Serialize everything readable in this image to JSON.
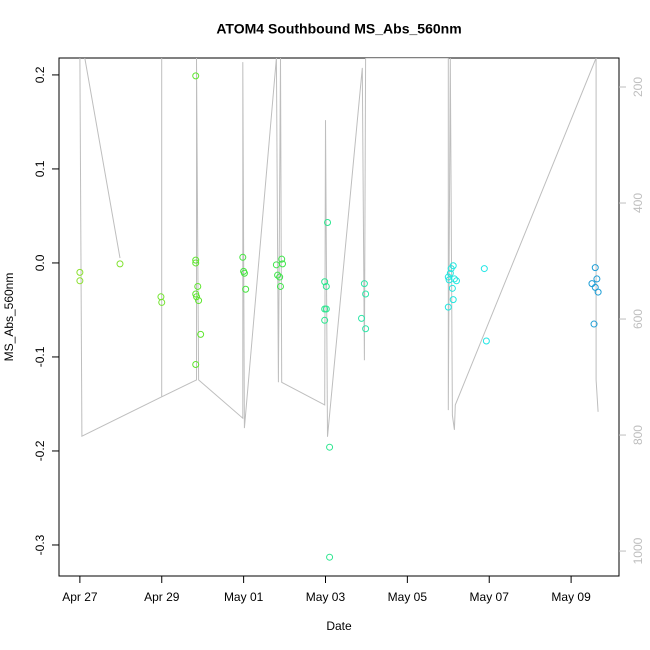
{
  "chart_data": {
    "type": "scatter",
    "title": "ATOM4 Southbound MS_Abs_560nm",
    "xlabel": "Date",
    "ylabel": "MS_Abs_560nm",
    "xlim": [
      -0.51,
      13.17
    ],
    "xticks": [
      {
        "value": 0,
        "label": "Apr 27"
      },
      {
        "value": 2,
        "label": "Apr 29"
      },
      {
        "value": 4,
        "label": "May 01"
      },
      {
        "value": 6,
        "label": "May 03"
      },
      {
        "value": 8,
        "label": "May 05"
      },
      {
        "value": 10,
        "label": "May 07"
      },
      {
        "value": 12,
        "label": "May 09"
      }
    ],
    "ylim": [
      -0.333,
      0.218
    ],
    "yticks": [
      {
        "value": -0.3,
        "label": "-0.3"
      },
      {
        "value": -0.2,
        "label": "-0.2"
      },
      {
        "value": -0.1,
        "label": "-0.1"
      },
      {
        "value": 0,
        "label": "0.0"
      },
      {
        "value": 0.1,
        "label": "0.1"
      },
      {
        "value": 0.2,
        "label": "0.2"
      }
    ],
    "y2lim": [
      1043,
      150
    ],
    "y2ticks": [
      200,
      400,
      600,
      800,
      1000
    ],
    "y2color": "#bebebe",
    "series": [
      {
        "type": "line",
        "axis": "y2",
        "color": "#bebebe",
        "x": [
          0.12,
          0.98,
          null,
          0,
          0.05,
          2.0,
          2.0,
          2.0,
          2.85,
          2.85,
          2.9,
          3.98,
          3.98,
          4.02,
          4.8,
          4.85,
          4.9,
          4.93,
          5.98,
          6.0,
          6.05,
          6.9,
          6.95,
          6.98,
          9.0,
          9.0,
          9.05,
          9.1,
          9.15,
          9.17,
          12.61,
          12.61,
          12.66
        ],
        "values": [
          150,
          495,
          null,
          150,
          802,
          734,
          150,
          734,
          705,
          150,
          705,
          771,
          157,
          788,
          150,
          709,
          150,
          709,
          748,
          257,
          803,
          167,
          671,
          150,
          150,
          757,
          150,
          766,
          791,
          748,
          150,
          705,
          760
        ]
      },
      {
        "type": "scatter",
        "x": [
          0,
          0,
          0.98,
          1.98,
          2.0,
          2.83,
          2.83,
          2.83,
          2.88,
          2.83,
          2.85,
          2.9,
          2.95,
          2.83,
          3.98,
          4.0,
          4.02,
          4.05,
          4.8,
          4.83,
          4.88,
          4.9,
          4.93,
          4.95,
          5.98,
          6.02,
          5.98,
          6.02,
          5.98,
          6.05,
          6.1,
          6.1,
          6.88,
          6.95,
          6.98,
          6.98,
          9.0,
          9.02,
          9.05,
          9.07,
          9.12,
          9.15,
          9.1,
          9.2,
          9.12,
          9.0,
          9.88,
          9.93,
          12.59,
          12.63,
          12.51,
          12.59,
          12.66,
          12.56
        ],
        "values": [
          -0.01,
          -0.019,
          -0.001,
          -0.036,
          -0.042,
          0.199,
          0.003,
          0.0,
          -0.025,
          -0.033,
          -0.036,
          -0.04,
          -0.076,
          -0.108,
          0.006,
          -0.009,
          -0.011,
          -0.028,
          -0.002,
          -0.013,
          -0.015,
          -0.025,
          0.004,
          -0.001,
          -0.02,
          -0.025,
          -0.049,
          -0.049,
          -0.061,
          0.043,
          -0.196,
          -0.313,
          -0.059,
          -0.022,
          -0.033,
          -0.07,
          -0.015,
          -0.018,
          -0.011,
          -0.006,
          -0.003,
          -0.017,
          -0.027,
          -0.019,
          -0.039,
          -0.047,
          -0.006,
          -0.083,
          -0.005,
          -0.017,
          -0.022,
          -0.026,
          -0.031,
          -0.065
        ],
        "colors": [
          "#8be02e",
          "#8be02e",
          "#80e22e",
          "#72e42e",
          "#72e42e",
          "#5ee62e",
          "#5ee62e",
          "#5ee62e",
          "#5ee62e",
          "#5ee62e",
          "#5ee62e",
          "#5ee62e",
          "#5ee62e",
          "#5ee62e",
          "#46e640",
          "#46e640",
          "#46e640",
          "#46e640",
          "#3ee64a",
          "#3ee64a",
          "#3ee64a",
          "#3ee64a",
          "#3ee64a",
          "#3ee64a",
          "#2ee690",
          "#2ee690",
          "#2ee690",
          "#2ee690",
          "#2ee690",
          "#2ee690",
          "#2ee690",
          "#2ee690",
          "#2ee6a8",
          "#2ee6a8",
          "#2ee6a8",
          "#2ee6a8",
          "#22e6e0",
          "#22e6e0",
          "#22e6e0",
          "#22e6e0",
          "#22e6e0",
          "#22e6e0",
          "#22e6e0",
          "#22e6e0",
          "#22e6e0",
          "#22e6e0",
          "#22e6e6",
          "#22e6e6",
          "#1e9ed6",
          "#1e9ed6",
          "#1e9ed6",
          "#1e9ed6",
          "#1e9ed6",
          "#1e9ed6"
        ]
      }
    ]
  }
}
